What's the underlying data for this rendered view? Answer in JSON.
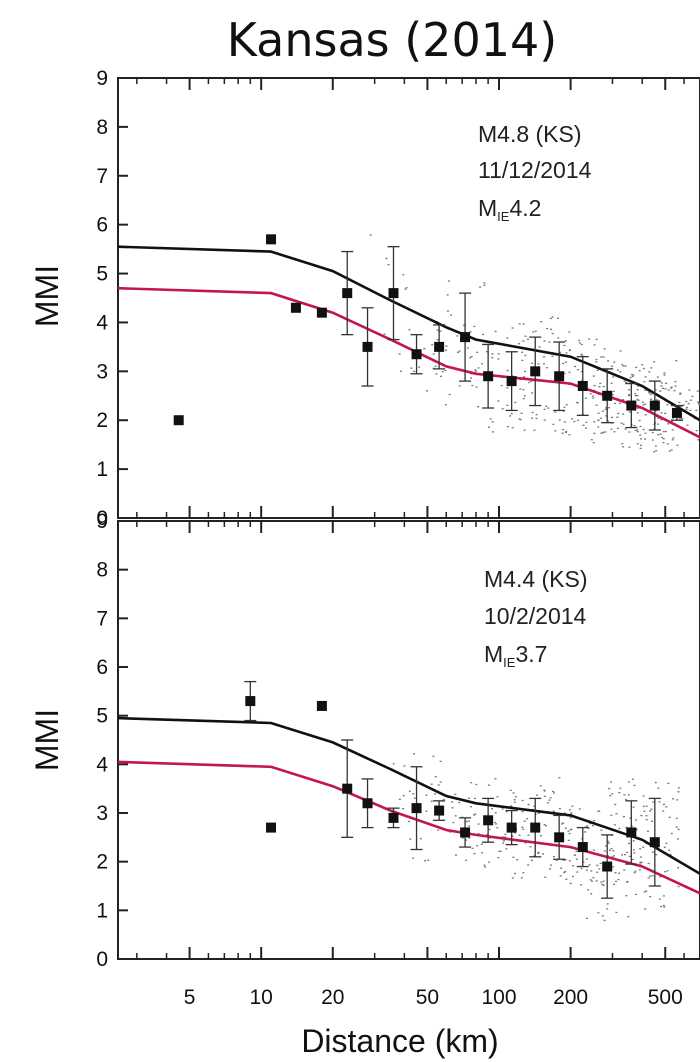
{
  "title": "Kansas (2014)",
  "colors": {
    "model_black": "#111111",
    "model_red": "#c3164b",
    "observed": "#111111",
    "grid_points": "#777777"
  },
  "chart_data": [
    {
      "type": "scatter",
      "panel": "top",
      "annotation": {
        "event": "M4.8 (KS)",
        "date": "11/12/2014",
        "mag_prefix": "M",
        "mag_sub": "IE",
        "mag_value": "4.2"
      },
      "xlabel": "Distance (km)",
      "ylabel": "MMI",
      "xscale": "log",
      "xlim": [
        2.5,
        700
      ],
      "ylim": [
        0,
        9
      ],
      "xticks": [
        5,
        10,
        20,
        50,
        100,
        200,
        500
      ],
      "xtick_labels": [
        "5",
        "10",
        "20",
        "50",
        "100",
        "200",
        "500"
      ],
      "yticks": [
        0,
        1,
        2,
        3,
        4,
        5,
        6,
        7,
        8,
        9
      ],
      "ytick_labels": [
        "0",
        "1",
        "2",
        "3",
        "4",
        "5",
        "6",
        "7",
        "8",
        "9"
      ],
      "series": [
        {
          "kind": "line",
          "color": "black",
          "x": [
            2.5,
            11,
            20,
            35,
            60,
            80,
            200,
            400,
            700
          ],
          "y": [
            5.55,
            5.45,
            5.05,
            4.45,
            3.9,
            3.65,
            3.3,
            2.7,
            2.0
          ]
        },
        {
          "kind": "line",
          "color": "red",
          "x": [
            2.5,
            11,
            20,
            35,
            60,
            80,
            200,
            400,
            700
          ],
          "y": [
            4.7,
            4.6,
            4.2,
            3.65,
            3.1,
            2.95,
            2.75,
            2.25,
            1.65
          ]
        },
        {
          "kind": "binned_means",
          "x": [
            4.5,
            11,
            14,
            18,
            23,
            28,
            36,
            45,
            56,
            72,
            90,
            113,
            142,
            179,
            225,
            285,
            360,
            452,
            560
          ],
          "y": [
            2.0,
            5.7,
            4.3,
            4.2,
            4.6,
            3.5,
            4.6,
            3.35,
            3.5,
            3.7,
            2.9,
            2.8,
            3.0,
            2.9,
            2.7,
            2.5,
            2.3,
            2.3,
            2.15
          ],
          "err": [
            0,
            0,
            0,
            0,
            0.85,
            0.8,
            0.95,
            0.4,
            0.45,
            0.9,
            0.65,
            0.6,
            0.7,
            0.7,
            0.6,
            0.55,
            0.45,
            0.5,
            0.15
          ]
        }
      ]
    },
    {
      "type": "scatter",
      "panel": "bottom",
      "annotation": {
        "event": "M4.4 (KS)",
        "date": "10/2/2014",
        "mag_prefix": "M",
        "mag_sub": "IE",
        "mag_value": "3.7"
      },
      "xlabel": "Distance (km)",
      "ylabel": "MMI",
      "xscale": "log",
      "xlim": [
        2.5,
        700
      ],
      "ylim": [
        0,
        9
      ],
      "xticks": [
        5,
        10,
        20,
        50,
        100,
        200,
        500
      ],
      "xtick_labels": [
        "5",
        "10",
        "20",
        "50",
        "100",
        "200",
        "500"
      ],
      "yticks": [
        0,
        1,
        2,
        3,
        4,
        5,
        6,
        7,
        8,
        9
      ],
      "ytick_labels": [
        "0",
        "1",
        "2",
        "3",
        "4",
        "5",
        "6",
        "7",
        "8",
        "9"
      ],
      "series": [
        {
          "kind": "line",
          "color": "black",
          "x": [
            2.5,
            11,
            20,
            35,
            60,
            80,
            200,
            400,
            700
          ],
          "y": [
            4.95,
            4.85,
            4.45,
            3.9,
            3.35,
            3.2,
            2.95,
            2.45,
            1.75
          ]
        },
        {
          "kind": "line",
          "color": "red",
          "x": [
            2.5,
            11,
            20,
            35,
            60,
            80,
            200,
            400,
            700
          ],
          "y": [
            4.05,
            3.95,
            3.55,
            3.05,
            2.65,
            2.55,
            2.3,
            1.9,
            1.35
          ]
        },
        {
          "kind": "binned_means",
          "x": [
            9,
            11,
            18,
            23,
            28,
            36,
            45,
            56,
            72,
            90,
            113,
            142,
            179,
            225,
            285,
            360,
            452
          ],
          "y": [
            5.3,
            2.7,
            5.2,
            3.5,
            3.2,
            2.9,
            3.1,
            3.05,
            2.6,
            2.85,
            2.7,
            2.7,
            2.5,
            2.3,
            1.9,
            2.6,
            2.4
          ],
          "err": [
            0.4,
            0,
            0,
            1.0,
            0.5,
            0.2,
            0.85,
            0.2,
            0.3,
            0.45,
            0.35,
            0.6,
            0.45,
            0.4,
            0.65,
            0.65,
            0.9
          ]
        }
      ]
    }
  ]
}
